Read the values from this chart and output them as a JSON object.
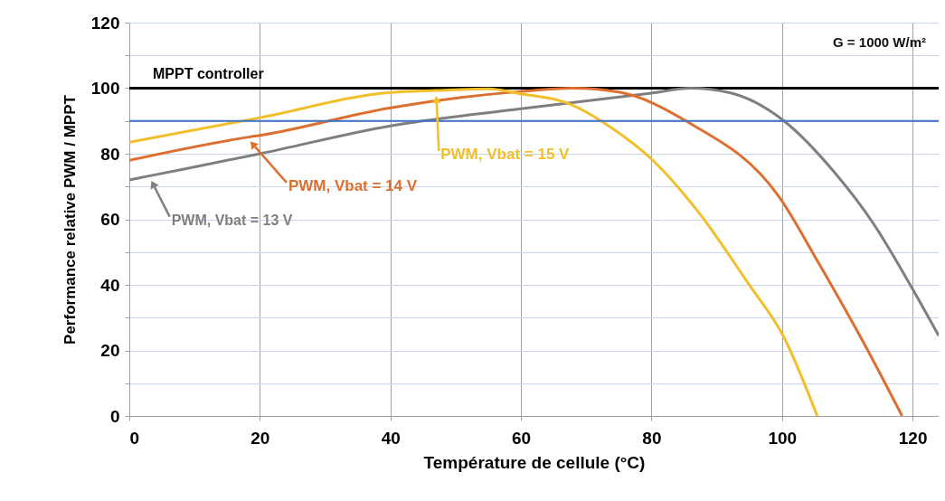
{
  "chart_data": {
    "type": "line",
    "xlabel": "Température de cellule  (°C)",
    "ylabel": "Performance relative PWM / MPPT",
    "annotations": [
      "G = 1000 W/m²"
    ],
    "series": [
      {
        "name": "MPPT controller",
        "color": "#000000",
        "x": [
          0,
          124
        ],
        "values": [
          100,
          100
        ]
      },
      {
        "name": "PWM, Vbat = 13 V",
        "color": "#7f7f7f",
        "x": [
          0,
          3,
          20,
          40,
          60,
          80,
          86,
          92,
          100.3,
          108,
          114,
          119.5,
          124
        ],
        "values": [
          72,
          73.2,
          80,
          88.5,
          93.7,
          98.5,
          100,
          98.6,
          90,
          74.4,
          58.7,
          40.5,
          24.5
        ]
      },
      {
        "name": "PWM, Vbat = 14 V",
        "color": "#dd7030",
        "x": [
          0,
          18,
          20,
          40,
          60,
          68,
          75,
          85.7,
          99.5,
          105.8,
          112.6,
          118.4
        ],
        "values": [
          78,
          85,
          85.6,
          94,
          99,
          100,
          98.8,
          89.5,
          67,
          46,
          22,
          0
        ]
      },
      {
        "name": "PWM, Vbat = 15 V",
        "color": "#f2bf2c",
        "x": [
          0,
          20,
          40,
          47,
          55,
          60,
          66.9,
          73.8,
          80.2,
          87.5,
          94.8,
          100.3,
          105.4
        ],
        "values": [
          83.5,
          91,
          98.7,
          99.3,
          99.8,
          98.3,
          95.6,
          88,
          78,
          61.4,
          40.5,
          24,
          0
        ]
      }
    ],
    "ref_lines": [
      {
        "axis": "y",
        "value": 90,
        "color": "#4472c4"
      }
    ],
    "xlim": [
      0,
      124
    ],
    "xticks": [
      0,
      20,
      40,
      60,
      80,
      100,
      120
    ],
    "ylim": [
      0,
      120
    ],
    "yticks": [
      0,
      {
        "value": 10,
        "label": null
      },
      20,
      {
        "value": 30,
        "label": null
      },
      40,
      {
        "value": 50,
        "label": null
      },
      60,
      {
        "value": 70,
        "label": null
      },
      80,
      {
        "value": 90,
        "label": null
      },
      100,
      {
        "value": 110,
        "label": null
      },
      120
    ],
    "grid": true,
    "line_style": "solid",
    "marker": "none"
  }
}
